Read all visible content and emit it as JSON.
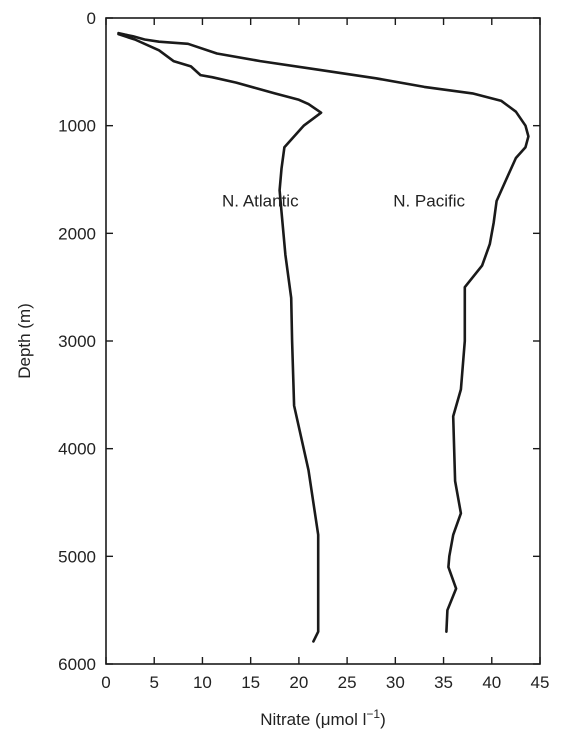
{
  "chart_data": {
    "type": "line",
    "xlabel": "Nitrate (μmol l⁻¹)",
    "xlabel_main": "Nitrate (",
    "xlabel_unit": "μmol l",
    "xlabel_exp": "−1",
    "xlabel_close": ")",
    "ylabel": "Depth (m)",
    "xlim": [
      0,
      45
    ],
    "ylim": [
      0,
      6000
    ],
    "y_inverted": true,
    "x_ticks": [
      "0",
      "5",
      "10",
      "15",
      "20",
      "25",
      "30",
      "35",
      "40",
      "45"
    ],
    "y_ticks": [
      "0",
      "1000",
      "2000",
      "3000",
      "4000",
      "5000",
      "6000"
    ],
    "grid": false,
    "series": [
      {
        "name": "N. Atlantic",
        "x": [
          1.3,
          3.0,
          5.5,
          7.0,
          8.8,
          9.8,
          11.0,
          13.5,
          15.5,
          17.5,
          20.0,
          21.0,
          22.3,
          20.5,
          18.5,
          18.2,
          18.0,
          18.2,
          18.6,
          19.2,
          19.3,
          19.5,
          21.0,
          22.0,
          22.0,
          21.5
        ],
        "y": [
          150,
          200,
          300,
          400,
          450,
          530,
          550,
          600,
          650,
          700,
          760,
          800,
          880,
          1000,
          1200,
          1400,
          1600,
          1800,
          2200,
          2600,
          3000,
          3600,
          4200,
          4800,
          5700,
          5790
        ],
        "label": "N. Atlantic"
      },
      {
        "name": "N. Pacific",
        "x": [
          1.3,
          2.0,
          2.8,
          4.0,
          5.5,
          8.5,
          11.5,
          16.0,
          22.0,
          28.0,
          33.0,
          38.0,
          41.0,
          42.5,
          43.5,
          43.8,
          43.5,
          42.5,
          41.5,
          40.5,
          40.2,
          39.8,
          39.0,
          37.2,
          37.2,
          36.8,
          36.0,
          36.2,
          36.8,
          36.0,
          35.6,
          35.5,
          36.3,
          35.4,
          35.3
        ],
        "y": [
          140,
          155,
          170,
          200,
          220,
          240,
          330,
          400,
          480,
          560,
          640,
          700,
          770,
          870,
          1000,
          1100,
          1200,
          1300,
          1500,
          1700,
          1900,
          2100,
          2300,
          2500,
          3000,
          3450,
          3700,
          4300,
          4600,
          4800,
          5000,
          5100,
          5300,
          5500,
          5700
        ],
        "label": "N. Pacific"
      }
    ]
  }
}
